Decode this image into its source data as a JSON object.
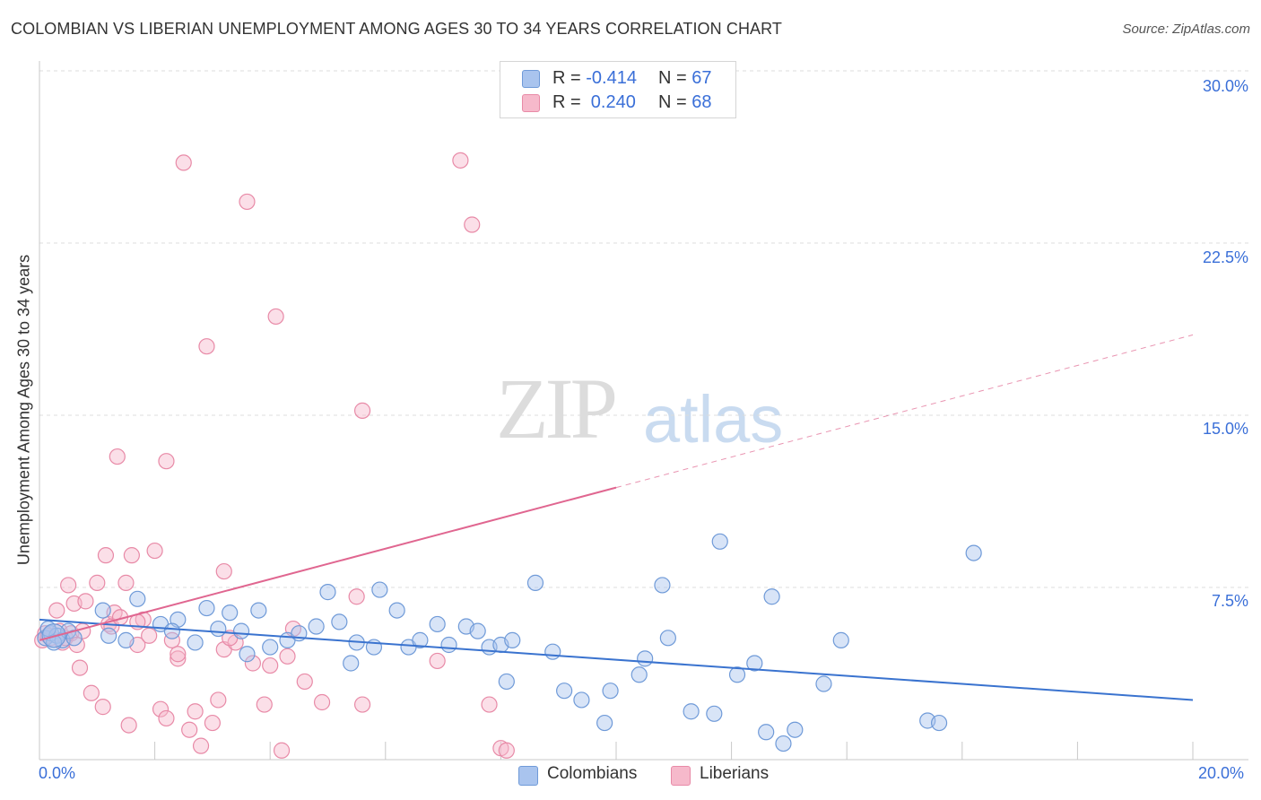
{
  "header": {
    "title": "COLOMBIAN VS LIBERIAN UNEMPLOYMENT AMONG AGES 30 TO 34 YEARS CORRELATION CHART",
    "source": "Source: ZipAtlas.com"
  },
  "watermark": {
    "zip": "ZIP",
    "atlas": "atlas"
  },
  "legend": {
    "rows": [
      {
        "r_label": "R = ",
        "r_value": "-0.414",
        "n_label": "N = ",
        "n_value": "67",
        "color": "#a9c4ee"
      },
      {
        "r_label": "R = ",
        "r_value": " 0.240",
        "n_label": "N = ",
        "n_value": "68",
        "color": "#f6b9cb"
      }
    ]
  },
  "bottom_legend": {
    "colombians": "Colombians",
    "liberians": "Liberians"
  },
  "axes": {
    "ylabel": "Unemployment Among Ages 30 to 34 years",
    "x_min_label": "0.0%",
    "x_max_label": "20.0%",
    "y_ticks": [
      "30.0%",
      "22.5%",
      "15.0%",
      "7.5%"
    ]
  },
  "colors": {
    "colombians_fill": "#a9c4ee",
    "colombians_stroke": "#6f9ad8",
    "colombians_line": "#3a73cf",
    "liberians_fill": "#f6b9cb",
    "liberians_stroke": "#e88aa7",
    "liberians_line": "#e06690"
  },
  "chart_data": {
    "type": "scatter",
    "title": "COLOMBIAN VS LIBERIAN UNEMPLOYMENT AMONG AGES 30 TO 34 YEARS CORRELATION CHART",
    "xlabel": "",
    "ylabel": "Unemployment Among Ages 30 to 34 years",
    "xlim": [
      0,
      20
    ],
    "ylim": [
      0,
      30
    ],
    "y_ticks": [
      7.5,
      15.0,
      22.5,
      30.0
    ],
    "grid": true,
    "legend_position": "top-center",
    "series": [
      {
        "name": "Colombians",
        "r": -0.414,
        "n": 67,
        "trend": {
          "x": [
            0,
            20
          ],
          "y": [
            6.1,
            2.6
          ]
        },
        "points": [
          [
            0.1,
            5.3
          ],
          [
            0.2,
            5.5
          ],
          [
            0.3,
            5.4
          ],
          [
            0.4,
            5.2
          ],
          [
            0.5,
            5.6
          ],
          [
            0.6,
            5.3
          ],
          [
            1.1,
            6.5
          ],
          [
            1.5,
            5.2
          ],
          [
            1.7,
            7.0
          ],
          [
            2.1,
            5.9
          ],
          [
            2.4,
            6.1
          ],
          [
            2.7,
            5.1
          ],
          [
            2.9,
            6.6
          ],
          [
            3.1,
            5.7
          ],
          [
            3.3,
            6.4
          ],
          [
            3.5,
            5.6
          ],
          [
            3.6,
            4.6
          ],
          [
            3.8,
            6.5
          ],
          [
            4.0,
            4.9
          ],
          [
            4.3,
            5.2
          ],
          [
            4.5,
            5.5
          ],
          [
            4.8,
            5.8
          ],
          [
            5.0,
            7.3
          ],
          [
            5.2,
            6.0
          ],
          [
            5.4,
            4.2
          ],
          [
            5.5,
            5.1
          ],
          [
            5.8,
            4.9
          ],
          [
            5.9,
            7.4
          ],
          [
            6.2,
            6.5
          ],
          [
            6.4,
            4.9
          ],
          [
            6.6,
            5.2
          ],
          [
            6.9,
            5.9
          ],
          [
            7.1,
            5.0
          ],
          [
            7.4,
            5.8
          ],
          [
            7.6,
            5.6
          ],
          [
            7.8,
            4.9
          ],
          [
            8.0,
            5.0
          ],
          [
            8.1,
            3.4
          ],
          [
            8.2,
            5.2
          ],
          [
            8.6,
            7.7
          ],
          [
            8.9,
            4.7
          ],
          [
            9.1,
            3.0
          ],
          [
            9.4,
            2.6
          ],
          [
            9.8,
            1.6
          ],
          [
            9.9,
            3.0
          ],
          [
            10.4,
            3.7
          ],
          [
            10.5,
            4.4
          ],
          [
            10.8,
            7.6
          ],
          [
            10.9,
            5.3
          ],
          [
            11.3,
            2.1
          ],
          [
            11.7,
            2.0
          ],
          [
            11.8,
            9.5
          ],
          [
            12.1,
            3.7
          ],
          [
            12.4,
            4.2
          ],
          [
            12.6,
            1.2
          ],
          [
            12.7,
            7.1
          ],
          [
            12.9,
            0.7
          ],
          [
            13.1,
            1.3
          ],
          [
            13.6,
            3.3
          ],
          [
            13.9,
            5.2
          ],
          [
            15.4,
            1.7
          ],
          [
            15.6,
            1.6
          ],
          [
            16.2,
            9.0
          ],
          [
            0.15,
            5.7
          ],
          [
            0.25,
            5.1
          ],
          [
            1.2,
            5.4
          ],
          [
            2.3,
            5.6
          ]
        ]
      },
      {
        "name": "Liberians",
        "r": 0.24,
        "n": 68,
        "trend": {
          "x": [
            0,
            20
          ],
          "y": [
            5.2,
            18.5
          ]
        },
        "points": [
          [
            0.1,
            5.5
          ],
          [
            0.2,
            5.3
          ],
          [
            0.3,
            6.5
          ],
          [
            0.4,
            5.1
          ],
          [
            0.5,
            7.6
          ],
          [
            0.6,
            6.8
          ],
          [
            0.7,
            4.0
          ],
          [
            0.8,
            6.9
          ],
          [
            0.9,
            2.9
          ],
          [
            1.0,
            7.7
          ],
          [
            1.1,
            2.3
          ],
          [
            1.15,
            8.9
          ],
          [
            1.2,
            5.9
          ],
          [
            1.3,
            6.4
          ],
          [
            1.35,
            13.2
          ],
          [
            1.5,
            7.7
          ],
          [
            1.55,
            1.5
          ],
          [
            1.6,
            8.9
          ],
          [
            1.7,
            5.0
          ],
          [
            1.8,
            6.1
          ],
          [
            1.9,
            5.4
          ],
          [
            2.0,
            9.1
          ],
          [
            2.1,
            2.2
          ],
          [
            2.2,
            1.8
          ],
          [
            2.2,
            13.0
          ],
          [
            2.3,
            5.2
          ],
          [
            2.4,
            4.4
          ],
          [
            2.5,
            26.0
          ],
          [
            2.6,
            1.3
          ],
          [
            2.7,
            2.1
          ],
          [
            2.8,
            0.6
          ],
          [
            2.9,
            18.0
          ],
          [
            3.0,
            1.6
          ],
          [
            3.1,
            2.6
          ],
          [
            3.2,
            4.8
          ],
          [
            3.2,
            8.2
          ],
          [
            3.4,
            5.1
          ],
          [
            3.6,
            24.3
          ],
          [
            3.7,
            4.2
          ],
          [
            3.9,
            2.4
          ],
          [
            4.1,
            19.3
          ],
          [
            4.2,
            0.4
          ],
          [
            4.3,
            4.5
          ],
          [
            4.4,
            5.7
          ],
          [
            4.6,
            3.4
          ],
          [
            4.9,
            2.5
          ],
          [
            5.6,
            2.4
          ],
          [
            5.5,
            7.1
          ],
          [
            5.6,
            15.2
          ],
          [
            6.9,
            4.3
          ],
          [
            7.3,
            26.1
          ],
          [
            7.5,
            23.3
          ],
          [
            7.8,
            2.4
          ],
          [
            8.0,
            0.5
          ],
          [
            8.1,
            0.4
          ],
          [
            0.05,
            5.2
          ],
          [
            0.15,
            5.4
          ],
          [
            0.35,
            5.6
          ],
          [
            0.45,
            5.3
          ],
          [
            0.55,
            5.5
          ],
          [
            0.65,
            5.0
          ],
          [
            1.25,
            5.8
          ],
          [
            0.75,
            5.6
          ],
          [
            1.4,
            6.2
          ],
          [
            1.7,
            6.0
          ],
          [
            2.4,
            4.6
          ],
          [
            3.3,
            5.3
          ],
          [
            4.0,
            4.1
          ]
        ]
      }
    ]
  }
}
